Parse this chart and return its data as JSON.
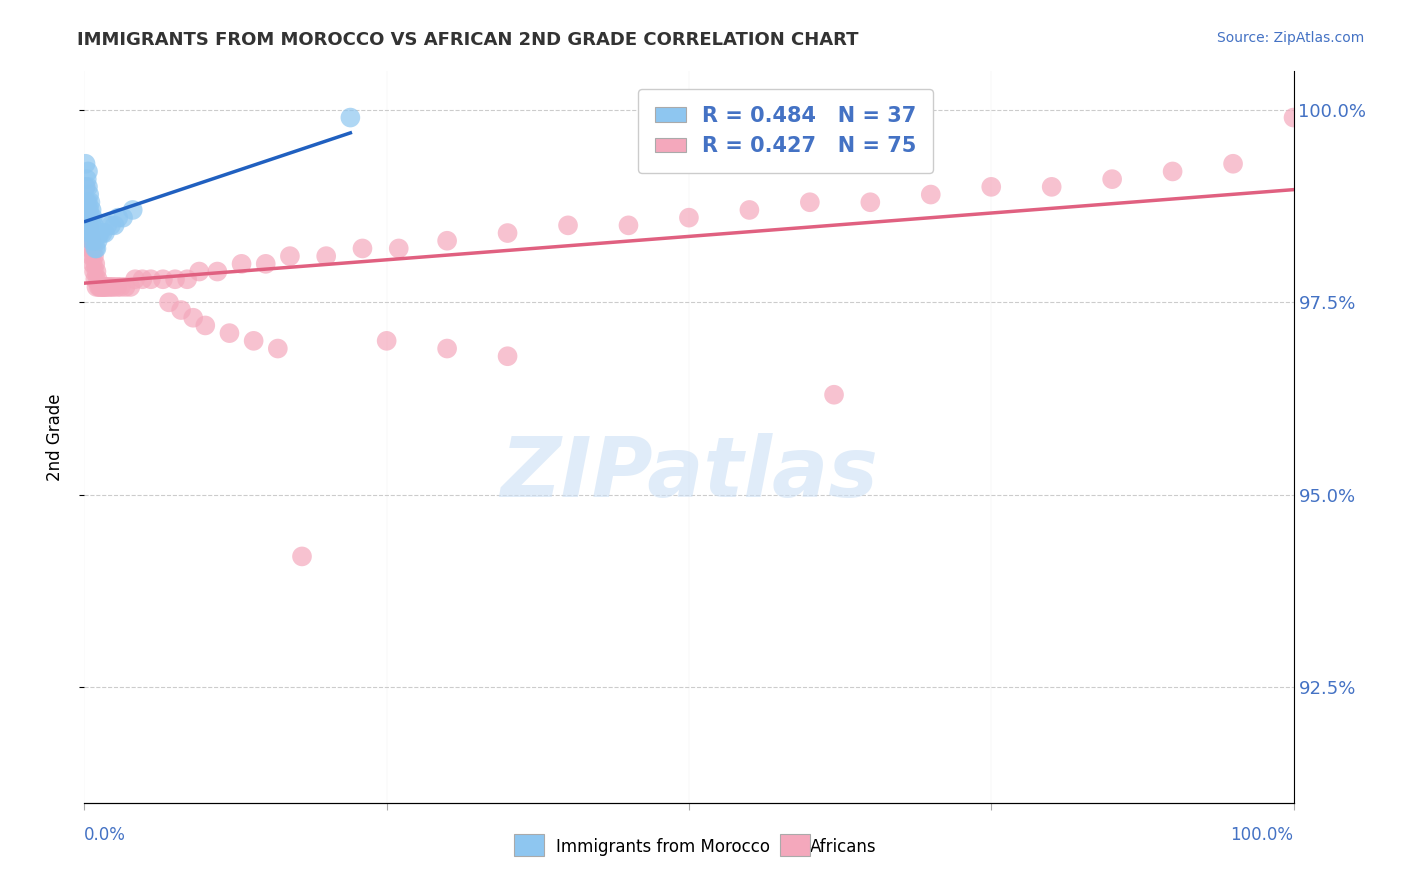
{
  "title": "IMMIGRANTS FROM MOROCCO VS AFRICAN 2ND GRADE CORRELATION CHART",
  "source": "Source: ZipAtlas.com",
  "ylabel": "2nd Grade",
  "xlim": [
    0.0,
    1.0
  ],
  "ylim": [
    0.91,
    1.005
  ],
  "yticks": [
    0.925,
    0.95,
    0.975,
    1.0
  ],
  "ytick_labels": [
    "92.5%",
    "95.0%",
    "97.5%",
    "100.0%"
  ],
  "morocco_color": "#8ec6f0",
  "african_color": "#f4a8bc",
  "morocco_line_color": "#2060c0",
  "african_line_color": "#e06080",
  "morocco_R": 0.484,
  "morocco_N": 37,
  "african_R": 0.427,
  "african_N": 75,
  "legend_label_morocco": "Immigrants from Morocco",
  "legend_label_african": "Africans",
  "watermark": "ZIPatlas",
  "morocco_x": [
    0.001,
    0.001,
    0.002,
    0.002,
    0.003,
    0.003,
    0.003,
    0.003,
    0.004,
    0.004,
    0.004,
    0.005,
    0.005,
    0.005,
    0.006,
    0.006,
    0.006,
    0.007,
    0.007,
    0.008,
    0.008,
    0.009,
    0.009,
    0.01,
    0.01,
    0.011,
    0.012,
    0.013,
    0.015,
    0.017,
    0.019,
    0.022,
    0.025,
    0.028,
    0.032,
    0.04,
    0.22
  ],
  "morocco_y": [
    0.993,
    0.99,
    0.991,
    0.988,
    0.992,
    0.99,
    0.988,
    0.985,
    0.989,
    0.987,
    0.985,
    0.988,
    0.986,
    0.984,
    0.987,
    0.985,
    0.983,
    0.986,
    0.984,
    0.985,
    0.983,
    0.984,
    0.982,
    0.984,
    0.982,
    0.983,
    0.984,
    0.984,
    0.984,
    0.984,
    0.985,
    0.985,
    0.985,
    0.986,
    0.986,
    0.987,
    0.999
  ],
  "african_x": [
    0.001,
    0.001,
    0.002,
    0.002,
    0.003,
    0.003,
    0.004,
    0.005,
    0.005,
    0.006,
    0.006,
    0.007,
    0.007,
    0.008,
    0.008,
    0.009,
    0.009,
    0.01,
    0.01,
    0.011,
    0.012,
    0.013,
    0.014,
    0.015,
    0.016,
    0.017,
    0.018,
    0.02,
    0.022,
    0.024,
    0.027,
    0.03,
    0.034,
    0.038,
    0.042,
    0.048,
    0.055,
    0.065,
    0.075,
    0.085,
    0.095,
    0.11,
    0.13,
    0.15,
    0.17,
    0.2,
    0.23,
    0.26,
    0.3,
    0.35,
    0.4,
    0.45,
    0.5,
    0.55,
    0.6,
    0.65,
    0.7,
    0.75,
    0.8,
    0.85,
    0.9,
    0.95,
    1.0,
    0.07,
    0.08,
    0.09,
    0.1,
    0.12,
    0.14,
    0.16,
    0.25,
    0.3,
    0.35,
    0.62,
    0.18
  ],
  "african_y": [
    0.99,
    0.987,
    0.988,
    0.985,
    0.987,
    0.984,
    0.985,
    0.984,
    0.982,
    0.983,
    0.981,
    0.982,
    0.98,
    0.981,
    0.979,
    0.98,
    0.978,
    0.979,
    0.977,
    0.978,
    0.977,
    0.977,
    0.977,
    0.977,
    0.977,
    0.977,
    0.977,
    0.977,
    0.977,
    0.977,
    0.977,
    0.977,
    0.977,
    0.977,
    0.978,
    0.978,
    0.978,
    0.978,
    0.978,
    0.978,
    0.979,
    0.979,
    0.98,
    0.98,
    0.981,
    0.981,
    0.982,
    0.982,
    0.983,
    0.984,
    0.985,
    0.985,
    0.986,
    0.987,
    0.988,
    0.988,
    0.989,
    0.99,
    0.99,
    0.991,
    0.992,
    0.993,
    0.999,
    0.975,
    0.974,
    0.973,
    0.972,
    0.971,
    0.97,
    0.969,
    0.97,
    0.969,
    0.968,
    0.963,
    0.942
  ]
}
